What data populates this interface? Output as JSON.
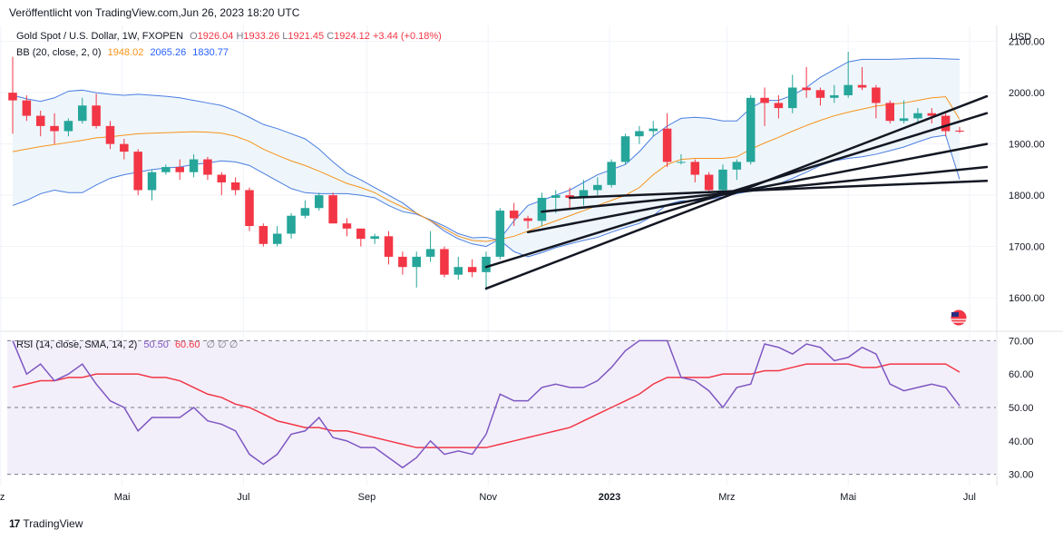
{
  "header": {
    "published": "Veröffentlicht von TradingView.com,Jun 26, 2023 18:20 UTC"
  },
  "legend": {
    "symbol": "Gold Spot / U.S. Dollar, 1W, FXOPEN",
    "open_label": "O",
    "open": "1926.04",
    "high_label": "H",
    "high": "1933.26",
    "low_label": "L",
    "low": "1921.45",
    "close_label": "C",
    "close": "1924.12",
    "change": "+3.44 (+0.18%)",
    "bb_label": "BB (20, close, 2, 0)",
    "bb_basis": "1948.02",
    "bb_upper": "2065.26",
    "bb_lower": "1830.77",
    "rsi_label": "RSI (14, close, SMA, 14, 2)",
    "rsi_value": "50.50",
    "rsi_sma": "60.60",
    "rsi_extra": "∅  ∅  ∅"
  },
  "footer": {
    "brand": "TradingView",
    "logo": "17"
  },
  "currency": "USD",
  "colors": {
    "up": "#26a69a",
    "down": "#f23645",
    "bb_basis": "#f7931a",
    "bb_band": "#4a7de0",
    "bb_fill": "#eef6fc",
    "rsi": "#7e57c2",
    "rsi_sma": "#f23645",
    "rsi_fill": "#f3effa"
  },
  "chart_data": [
    {
      "type": "candlestick",
      "title": "Gold Spot / U.S. Dollar, 1W, FXOPEN",
      "yaxis_label": "USD",
      "yticks": [
        1600,
        1700,
        1800,
        1900,
        2000,
        2100
      ],
      "ytick_labels": [
        "1600.00",
        "1700.00",
        "1800.00",
        "1900.00",
        "2000.00",
        "2100.00"
      ],
      "ylim": [
        1540,
        2110
      ],
      "xticks": [
        "rz",
        "Mai",
        "Jul",
        "Sep",
        "Nov",
        "2023",
        "Mrz",
        "Mai",
        "Jul"
      ],
      "xtick_dates": [
        "2022-03-01",
        "2022-05-01",
        "2022-07-01",
        "2022-09-01",
        "2022-11-01",
        "2023-01-01",
        "2023-03-01",
        "2023-05-01",
        "2023-07-01"
      ],
      "x_dates": [
        "2022-03-07",
        "2022-03-14",
        "2022-03-21",
        "2022-03-28",
        "2022-04-04",
        "2022-04-11",
        "2022-04-18",
        "2022-04-25",
        "2022-05-02",
        "2022-05-09",
        "2022-05-16",
        "2022-05-23",
        "2022-05-30",
        "2022-06-06",
        "2022-06-13",
        "2022-06-20",
        "2022-06-27",
        "2022-07-04",
        "2022-07-11",
        "2022-07-18",
        "2022-07-25",
        "2022-08-01",
        "2022-08-08",
        "2022-08-15",
        "2022-08-22",
        "2022-08-29",
        "2022-09-05",
        "2022-09-12",
        "2022-09-19",
        "2022-09-26",
        "2022-10-03",
        "2022-10-10",
        "2022-10-17",
        "2022-10-24",
        "2022-10-31",
        "2022-11-07",
        "2022-11-14",
        "2022-11-21",
        "2022-11-28",
        "2022-12-05",
        "2022-12-12",
        "2022-12-19",
        "2022-12-26",
        "2023-01-02",
        "2023-01-09",
        "2023-01-16",
        "2023-01-23",
        "2023-01-30",
        "2023-02-06",
        "2023-02-13",
        "2023-02-20",
        "2023-02-27",
        "2023-03-06",
        "2023-03-13",
        "2023-03-20",
        "2023-03-27",
        "2023-04-03",
        "2023-04-10",
        "2023-04-17",
        "2023-04-24",
        "2023-05-01",
        "2023-05-08",
        "2023-05-15",
        "2023-05-22",
        "2023-05-29",
        "2023-06-05",
        "2023-06-12",
        "2023-06-19",
        "2023-06-26"
      ],
      "ohlc": [
        [
          2000,
          2070,
          1920,
          1985
        ],
        [
          1985,
          1995,
          1945,
          1955
        ],
        [
          1955,
          1965,
          1915,
          1935
        ],
        [
          1935,
          1960,
          1900,
          1925
        ],
        [
          1925,
          1950,
          1915,
          1945
        ],
        [
          1945,
          1990,
          1940,
          1975
        ],
        [
          1975,
          1998,
          1930,
          1935
        ],
        [
          1935,
          1945,
          1890,
          1900
        ],
        [
          1900,
          1910,
          1870,
          1885
        ],
        [
          1885,
          1890,
          1800,
          1810
        ],
        [
          1810,
          1850,
          1790,
          1845
        ],
        [
          1845,
          1860,
          1840,
          1855
        ],
        [
          1855,
          1870,
          1830,
          1845
        ],
        [
          1845,
          1880,
          1835,
          1870
        ],
        [
          1870,
          1875,
          1830,
          1840
        ],
        [
          1840,
          1845,
          1800,
          1825
        ],
        [
          1825,
          1835,
          1800,
          1810
        ],
        [
          1810,
          1815,
          1730,
          1740
        ],
        [
          1740,
          1745,
          1700,
          1705
        ],
        [
          1705,
          1740,
          1700,
          1725
        ],
        [
          1725,
          1765,
          1715,
          1760
        ],
        [
          1760,
          1790,
          1755,
          1775
        ],
        [
          1775,
          1805,
          1770,
          1800
        ],
        [
          1800,
          1805,
          1745,
          1745
        ],
        [
          1745,
          1755,
          1720,
          1735
        ],
        [
          1735,
          1735,
          1700,
          1715
        ],
        [
          1715,
          1725,
          1705,
          1720
        ],
        [
          1720,
          1730,
          1665,
          1680
        ],
        [
          1680,
          1690,
          1645,
          1660
        ],
        [
          1660,
          1690,
          1620,
          1680
        ],
        [
          1680,
          1730,
          1670,
          1695
        ],
        [
          1695,
          1700,
          1640,
          1645
        ],
        [
          1645,
          1680,
          1635,
          1660
        ],
        [
          1660,
          1675,
          1640,
          1650
        ],
        [
          1650,
          1690,
          1615,
          1680
        ],
        [
          1680,
          1775,
          1675,
          1770
        ],
        [
          1770,
          1785,
          1740,
          1755
        ],
        [
          1755,
          1760,
          1735,
          1750
        ],
        [
          1750,
          1805,
          1740,
          1795
        ],
        [
          1795,
          1810,
          1765,
          1800
        ],
        [
          1800,
          1815,
          1775,
          1795
        ],
        [
          1795,
          1830,
          1780,
          1810
        ],
        [
          1810,
          1835,
          1800,
          1820
        ],
        [
          1820,
          1870,
          1815,
          1865
        ],
        [
          1865,
          1920,
          1860,
          1915
        ],
        [
          1915,
          1935,
          1900,
          1925
        ],
        [
          1925,
          1945,
          1915,
          1930
        ],
        [
          1930,
          1960,
          1855,
          1865
        ],
        [
          1865,
          1880,
          1860,
          1865
        ],
        [
          1865,
          1870,
          1825,
          1840
        ],
        [
          1840,
          1845,
          1805,
          1810
        ],
        [
          1810,
          1860,
          1805,
          1850
        ],
        [
          1850,
          1870,
          1830,
          1865
        ],
        [
          1865,
          1995,
          1860,
          1990
        ],
        [
          1990,
          2010,
          1935,
          1980
        ],
        [
          1980,
          1995,
          1950,
          1970
        ],
        [
          1970,
          2035,
          1960,
          2010
        ],
        [
          2010,
          2050,
          1990,
          2005
        ],
        [
          2005,
          2010,
          1975,
          1990
        ],
        [
          1990,
          2015,
          1980,
          1995
        ],
        [
          1995,
          2080,
          1990,
          2015
        ],
        [
          2015,
          2050,
          2005,
          2010
        ],
        [
          2010,
          2015,
          1950,
          1980
        ],
        [
          1980,
          1985,
          1940,
          1945
        ],
        [
          1945,
          1985,
          1940,
          1950
        ],
        [
          1950,
          1970,
          1940,
          1960
        ],
        [
          1960,
          1970,
          1940,
          1955
        ],
        [
          1955,
          1960,
          1915,
          1925
        ],
        [
          1926.04,
          1933.26,
          1921.45,
          1924.12
        ]
      ],
      "bb_upper": [
        1995,
        1988,
        1983,
        1990,
        2003,
        2005,
        2000,
        1997,
        1995,
        1997,
        1995,
        1993,
        1990,
        1985,
        1980,
        1975,
        1965,
        1952,
        1938,
        1930,
        1920,
        1910,
        1890,
        1865,
        1843,
        1830,
        1815,
        1800,
        1785,
        1765,
        1750,
        1730,
        1715,
        1705,
        1700,
        1715,
        1750,
        1780,
        1790,
        1800,
        1810,
        1825,
        1840,
        1850,
        1860,
        1885,
        1915,
        1935,
        1950,
        1952,
        1950,
        1945,
        1945,
        1970,
        1985,
        1985,
        1995,
        2010,
        2030,
        2045,
        2060,
        2065,
        2065,
        2065,
        2066,
        2067,
        2067,
        2066,
        2065
      ],
      "bb_basis": [
        1885,
        1890,
        1895,
        1899,
        1903,
        1907,
        1912,
        1914,
        1917,
        1920,
        1921,
        1922,
        1923,
        1924,
        1923,
        1921,
        1915,
        1905,
        1890,
        1878,
        1867,
        1858,
        1847,
        1835,
        1823,
        1815,
        1805,
        1790,
        1777,
        1765,
        1750,
        1735,
        1720,
        1712,
        1710,
        1714,
        1720,
        1730,
        1740,
        1750,
        1760,
        1770,
        1780,
        1790,
        1800,
        1815,
        1840,
        1860,
        1870,
        1872,
        1872,
        1872,
        1875,
        1890,
        1902,
        1913,
        1925,
        1936,
        1946,
        1955,
        1962,
        1968,
        1974,
        1977,
        1980,
        1985,
        1990,
        1992,
        1948
      ],
      "bb_lower": [
        1780,
        1790,
        1803,
        1810,
        1805,
        1805,
        1820,
        1833,
        1840,
        1845,
        1850,
        1853,
        1855,
        1860,
        1863,
        1867,
        1865,
        1858,
        1843,
        1828,
        1813,
        1805,
        1803,
        1803,
        1803,
        1800,
        1795,
        1780,
        1768,
        1763,
        1752,
        1740,
        1725,
        1717,
        1718,
        1712,
        1690,
        1680,
        1688,
        1698,
        1705,
        1712,
        1718,
        1728,
        1737,
        1745,
        1760,
        1782,
        1789,
        1789,
        1792,
        1797,
        1803,
        1808,
        1815,
        1822,
        1833,
        1845,
        1858,
        1867,
        1872,
        1875,
        1880,
        1887,
        1894,
        1904,
        1913,
        1917,
        1830.77
      ],
      "trendlines": [
        {
          "start": [
            "2022-10-31",
            1618
          ],
          "end": [
            "2023-06-26",
            1993
          ]
        },
        {
          "start": [
            "2022-10-31",
            1660
          ],
          "end": [
            "2023-06-26",
            1960
          ]
        },
        {
          "start": [
            "2022-11-21",
            1728
          ],
          "end": [
            "2023-06-26",
            1900
          ]
        },
        {
          "start": [
            "2022-11-28",
            1768
          ],
          "end": [
            "2023-06-26",
            1855
          ]
        },
        {
          "start": [
            "2022-12-12",
            1795
          ],
          "end": [
            "2023-06-26",
            1828
          ]
        }
      ]
    },
    {
      "type": "line",
      "title": "RSI (14, close, SMA, 14, 2)",
      "yticks": [
        30,
        40,
        50,
        60,
        70
      ],
      "ytick_labels": [
        "30.00",
        "40.00",
        "50.00",
        "60.00",
        "70.00"
      ],
      "ylim": [
        28,
        72
      ],
      "bands": [
        30,
        70
      ],
      "midline": 50,
      "series": [
        {
          "values": [
            70,
            60,
            63,
            58,
            60,
            63,
            57,
            52,
            50,
            43,
            47,
            47,
            47,
            50,
            46,
            45,
            43,
            36,
            33,
            36,
            42,
            43,
            47,
            41,
            40,
            38,
            38,
            35,
            32,
            35,
            40,
            36,
            37,
            36,
            42,
            54,
            52,
            52,
            56,
            57,
            56,
            56,
            58,
            62,
            67,
            70,
            70,
            70,
            59,
            58,
            55,
            50,
            56,
            57,
            69,
            68,
            66,
            69,
            68,
            64,
            65,
            68,
            66,
            57,
            55,
            56,
            57,
            56,
            50.5
          ]
        },
        {
          "values": [
            56,
            57,
            58,
            58,
            59,
            59,
            60,
            60,
            60,
            60,
            59,
            59,
            58,
            56,
            54,
            53,
            51,
            50,
            48,
            46,
            45,
            44,
            44,
            43,
            43,
            42,
            41,
            40,
            39,
            38,
            38,
            38,
            38,
            38,
            38,
            39,
            40,
            41,
            42,
            43,
            44,
            46,
            48,
            50,
            52,
            54,
            57,
            59,
            59,
            59,
            59,
            60,
            60,
            60,
            61,
            61,
            62,
            63,
            63,
            63,
            63,
            62,
            62,
            63,
            63,
            63,
            63,
            63,
            60.6
          ]
        }
      ]
    }
  ]
}
